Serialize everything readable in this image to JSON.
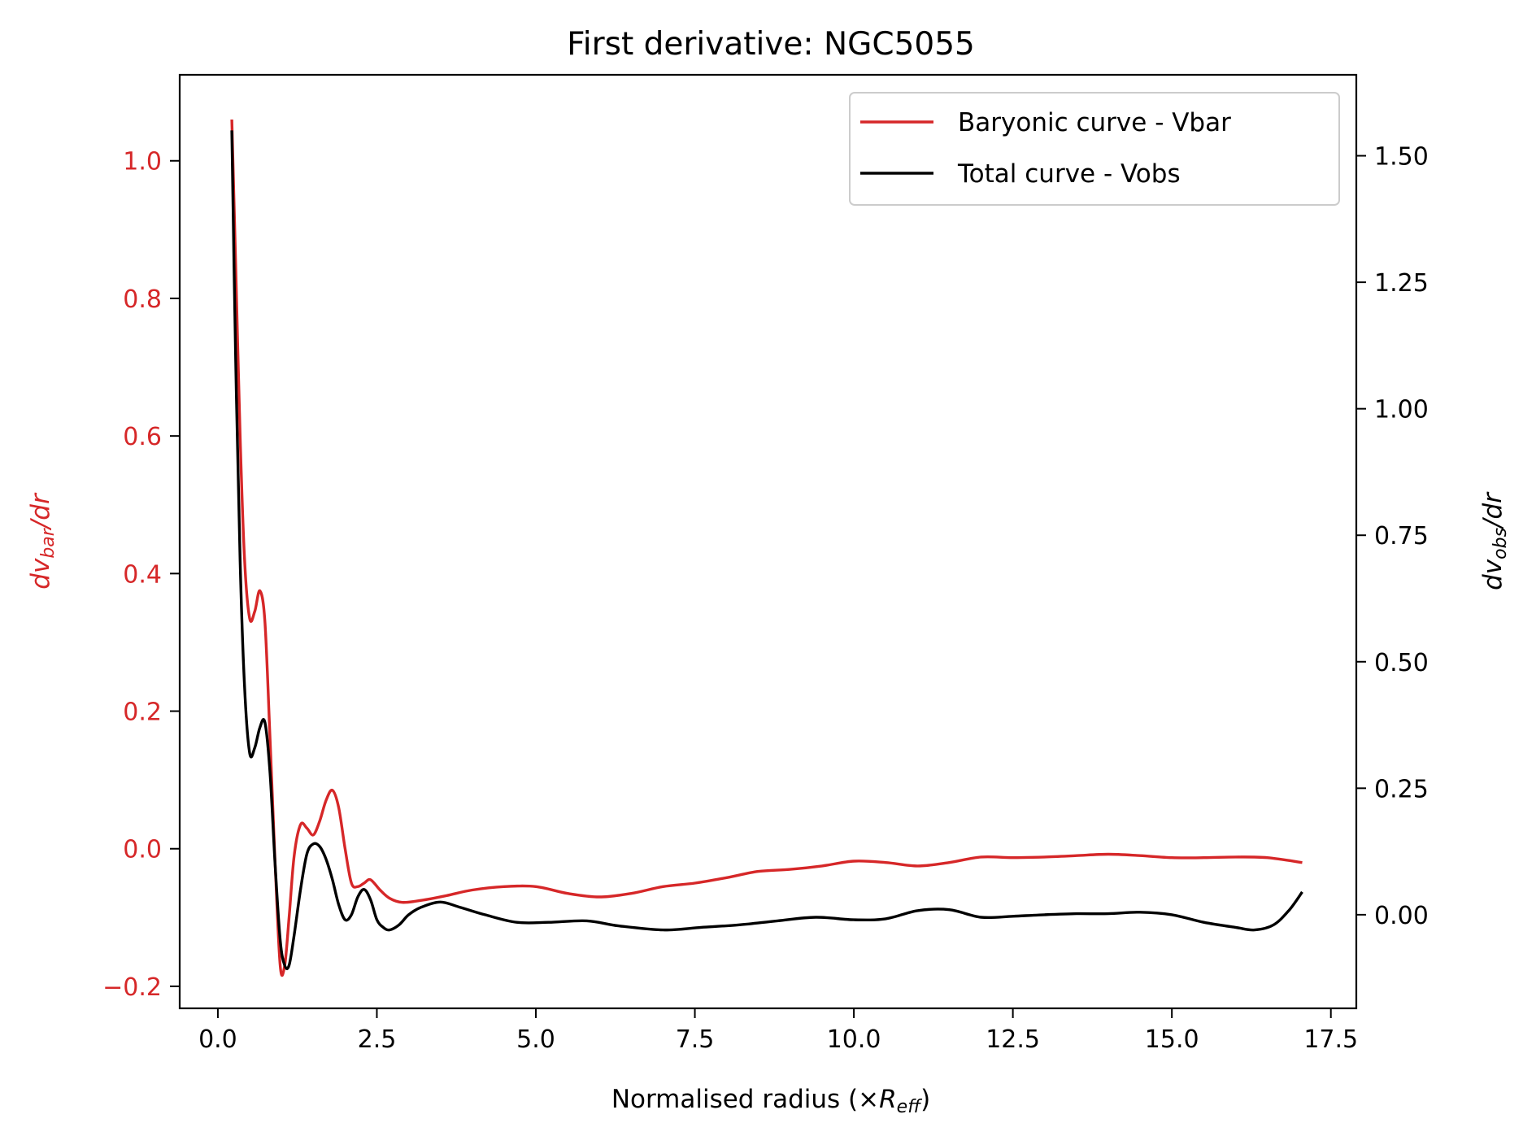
{
  "chart_data": {
    "type": "line",
    "title": "First derivative: NGC5055",
    "xlabel": {
      "prefix": "Normalised radius (×",
      "var": "R",
      "sub": "eff",
      "suffix": ")"
    },
    "ylabel_left": {
      "var": "dv",
      "sub": "bar",
      "suffix": "/dr"
    },
    "ylabel_right": {
      "var": "dv",
      "sub": "obs",
      "suffix": "/dr"
    },
    "xlim": [
      -0.6,
      17.9
    ],
    "ylim_left": [
      -0.232,
      1.125
    ],
    "ylim_right": [
      -0.185,
      1.66
    ],
    "x_ticks": [
      "0.0",
      "2.5",
      "5.0",
      "7.5",
      "10.0",
      "12.5",
      "15.0",
      "17.5"
    ],
    "y_left_ticks": [
      "−0.2",
      "0.0",
      "0.2",
      "0.4",
      "0.6",
      "0.8",
      "1.0"
    ],
    "y_right_ticks": [
      "0.00",
      "0.25",
      "0.50",
      "0.75",
      "1.00",
      "1.25",
      "1.50"
    ],
    "legend_position": "top-right",
    "colors": {
      "bar": "#d62728",
      "obs": "#000000",
      "left_axis": "#d62728"
    },
    "series": [
      {
        "name": "Baryonic curve - Vbar",
        "axis": "left",
        "x": [
          0.22,
          0.28,
          0.35,
          0.42,
          0.5,
          0.58,
          0.66,
          0.74,
          0.82,
          0.9,
          0.98,
          1.05,
          1.12,
          1.2,
          1.3,
          1.4,
          1.5,
          1.6,
          1.7,
          1.8,
          1.9,
          2.0,
          2.1,
          2.2,
          2.3,
          2.4,
          2.55,
          2.7,
          2.9,
          3.2,
          3.6,
          4.0,
          4.5,
          5.0,
          5.5,
          6.0,
          6.5,
          7.0,
          7.5,
          8.0,
          8.5,
          9.0,
          9.5,
          10.0,
          10.5,
          11.0,
          11.5,
          12.0,
          12.5,
          13.0,
          13.5,
          14.0,
          14.5,
          15.0,
          15.5,
          16.0,
          16.5,
          17.05
        ],
        "values": [
          1.06,
          0.85,
          0.6,
          0.42,
          0.335,
          0.345,
          0.375,
          0.33,
          0.16,
          -0.02,
          -0.17,
          -0.17,
          -0.1,
          -0.01,
          0.035,
          0.03,
          0.02,
          0.04,
          0.07,
          0.085,
          0.06,
          0.0,
          -0.05,
          -0.055,
          -0.05,
          -0.045,
          -0.06,
          -0.072,
          -0.078,
          -0.075,
          -0.068,
          -0.06,
          -0.055,
          -0.055,
          -0.065,
          -0.07,
          -0.065,
          -0.055,
          -0.05,
          -0.042,
          -0.033,
          -0.03,
          -0.025,
          -0.018,
          -0.02,
          -0.025,
          -0.02,
          -0.012,
          -0.013,
          -0.012,
          -0.01,
          -0.008,
          -0.01,
          -0.013,
          -0.013,
          -0.012,
          -0.013,
          -0.02
        ]
      },
      {
        "name": "Total curve - Vobs",
        "axis": "right",
        "x": [
          0.22,
          0.28,
          0.35,
          0.42,
          0.5,
          0.58,
          0.66,
          0.74,
          0.82,
          0.9,
          0.98,
          1.05,
          1.12,
          1.2,
          1.3,
          1.4,
          1.5,
          1.6,
          1.7,
          1.8,
          1.9,
          2.0,
          2.1,
          2.2,
          2.3,
          2.4,
          2.5,
          2.6,
          2.7,
          2.85,
          3.0,
          3.2,
          3.5,
          3.8,
          4.2,
          4.7,
          5.2,
          5.8,
          6.3,
          7.0,
          7.6,
          8.2,
          8.8,
          9.4,
          10.0,
          10.5,
          11.0,
          11.5,
          12.0,
          12.5,
          13.0,
          13.5,
          14.0,
          14.5,
          15.0,
          15.5,
          16.0,
          16.3,
          16.6,
          16.85,
          17.05
        ],
        "values": [
          1.55,
          1.1,
          0.7,
          0.45,
          0.32,
          0.33,
          0.37,
          0.38,
          0.28,
          0.1,
          -0.05,
          -0.1,
          -0.1,
          -0.04,
          0.05,
          0.12,
          0.14,
          0.135,
          0.11,
          0.07,
          0.02,
          -0.01,
          0.0,
          0.035,
          0.05,
          0.03,
          -0.01,
          -0.025,
          -0.03,
          -0.02,
          0.0,
          0.015,
          0.025,
          0.015,
          0.0,
          -0.015,
          -0.015,
          -0.012,
          -0.022,
          -0.03,
          -0.025,
          -0.02,
          -0.012,
          -0.005,
          -0.01,
          -0.008,
          0.008,
          0.01,
          -0.005,
          -0.003,
          0.0,
          0.002,
          0.002,
          0.005,
          0.0,
          -0.015,
          -0.025,
          -0.03,
          -0.02,
          0.01,
          0.045
        ]
      }
    ]
  }
}
